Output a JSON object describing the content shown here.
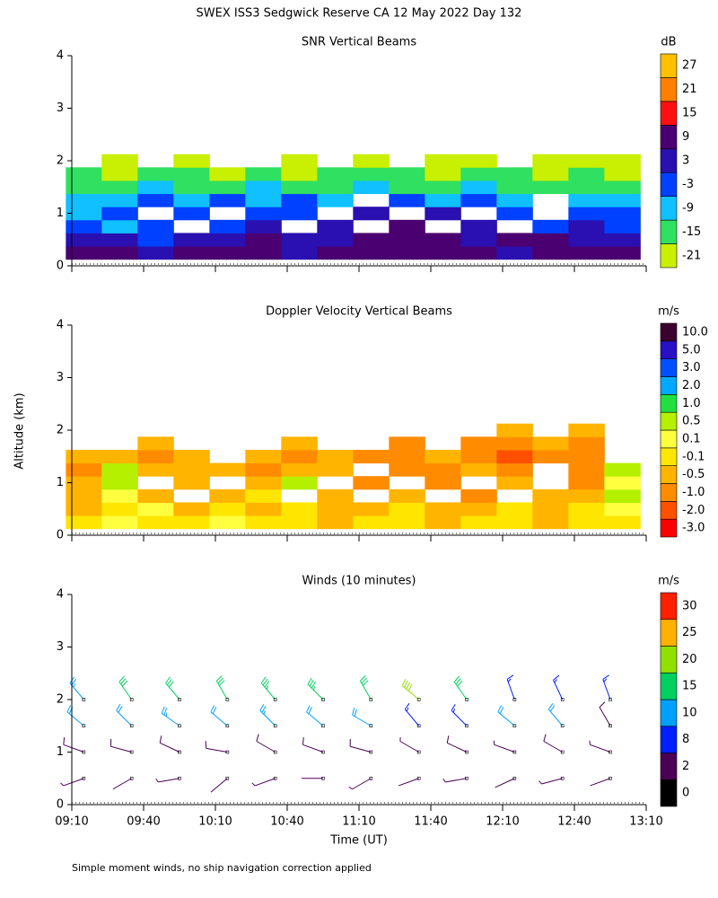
{
  "title": "SWEX ISS3 Sedgwick Reserve CA  12 May 2022 Day 132",
  "y_label": "Altitude (km)",
  "x_label": "Time (UT)",
  "note": "Simple moment winds, no ship navigation correction applied",
  "chart_data": [
    {
      "type": "heatmap",
      "title": "SNR Vertical Beams",
      "xlim": [
        550,
        790
      ],
      "ylim": [
        0,
        4
      ],
      "yticks": [
        0,
        1,
        2,
        3,
        4
      ],
      "xticks": [
        550,
        580,
        610,
        640,
        670,
        700,
        730,
        760,
        790
      ],
      "x": [
        555,
        570,
        585,
        600,
        615,
        630,
        645,
        660,
        675,
        690,
        705,
        720,
        735,
        750,
        765,
        780
      ],
      "y": [
        0.25,
        0.5,
        0.75,
        1.0,
        1.25,
        1.5,
        1.75,
        2.0
      ],
      "z": [
        [
          9,
          9,
          3,
          9,
          9,
          9,
          3,
          9,
          9,
          9,
          9,
          9,
          3,
          9,
          9,
          9
        ],
        [
          3,
          3,
          -3,
          3,
          3,
          9,
          3,
          3,
          9,
          9,
          9,
          3,
          9,
          9,
          3,
          3
        ],
        [
          -3,
          -9,
          -3,
          null,
          -3,
          3,
          null,
          3,
          null,
          9,
          null,
          3,
          null,
          -3,
          3,
          -3
        ],
        [
          -9,
          -3,
          null,
          -3,
          null,
          -3,
          -3,
          null,
          3,
          null,
          3,
          null,
          -3,
          null,
          -3,
          -3
        ],
        [
          -9,
          -9,
          -3,
          -9,
          -3,
          -9,
          -3,
          -9,
          null,
          -3,
          -9,
          -3,
          -9,
          null,
          -9,
          -9
        ],
        [
          -15,
          -15,
          -9,
          -15,
          -15,
          -9,
          -15,
          -15,
          -9,
          -15,
          -15,
          -9,
          -15,
          -15,
          -15,
          -15
        ],
        [
          -15,
          -21,
          -15,
          -15,
          -21,
          -15,
          -21,
          -15,
          -15,
          -15,
          -21,
          -15,
          -15,
          -21,
          -15,
          -21
        ],
        [
          null,
          -21,
          null,
          -21,
          null,
          null,
          -21,
          null,
          -21,
          null,
          -21,
          -21,
          null,
          -21,
          -21,
          -21
        ]
      ],
      "colorbar": {
        "label": "dB",
        "ticks": [
          -21,
          -15,
          -9,
          -3,
          3,
          9,
          15,
          21,
          27
        ],
        "colors": [
          "#c8f000",
          "#30e060",
          "#10c0ff",
          "#0040ff",
          "#2a10b0",
          "#4a0070",
          "#ff1010",
          "#ff8000",
          "#ffc000"
        ]
      }
    },
    {
      "type": "heatmap",
      "title": "Doppler Velocity Vertical Beams",
      "xlim": [
        550,
        790
      ],
      "ylim": [
        0,
        4
      ],
      "yticks": [
        0,
        1,
        2,
        3,
        4
      ],
      "xticks": [
        550,
        580,
        610,
        640,
        670,
        700,
        730,
        760,
        790
      ],
      "x": [
        555,
        570,
        585,
        600,
        615,
        630,
        645,
        660,
        675,
        690,
        705,
        720,
        735,
        750,
        765,
        780
      ],
      "y": [
        0.25,
        0.5,
        0.75,
        1.0,
        1.25,
        1.5,
        1.75,
        2.0
      ],
      "z": [
        [
          -0.1,
          0.1,
          -0.1,
          -0.1,
          0.1,
          -0.1,
          -0.1,
          -0.5,
          -0.1,
          -0.1,
          -0.5,
          -0.1,
          -0.1,
          -0.5,
          -0.1,
          -0.1
        ],
        [
          -0.5,
          -0.1,
          0.1,
          -0.5,
          -0.1,
          -0.5,
          -0.1,
          -0.5,
          -0.5,
          -0.1,
          -0.5,
          -0.5,
          -0.1,
          -0.5,
          -0.1,
          0.1
        ],
        [
          -0.5,
          0.1,
          -0.5,
          null,
          -0.5,
          -0.1,
          null,
          -0.5,
          null,
          -0.5,
          null,
          -1.0,
          null,
          -0.5,
          -0.5,
          0.5
        ],
        [
          -0.5,
          0.5,
          null,
          -0.5,
          null,
          -0.5,
          0.5,
          null,
          -1.0,
          null,
          -1.0,
          null,
          -0.5,
          null,
          -1.0,
          0.1
        ],
        [
          -1.0,
          0.5,
          -0.5,
          -0.5,
          -0.5,
          -1.0,
          -0.5,
          -0.5,
          null,
          -1.0,
          -1.0,
          -0.5,
          -1.0,
          null,
          -1.0,
          0.5
        ],
        [
          -0.5,
          -0.5,
          -1.0,
          -0.5,
          null,
          -0.5,
          -1.0,
          -0.5,
          -1.0,
          -1.0,
          -0.5,
          -1.0,
          -2.0,
          -1.0,
          -1.0,
          null
        ],
        [
          null,
          null,
          -0.5,
          null,
          null,
          null,
          -0.5,
          null,
          null,
          -1.0,
          null,
          -1.0,
          -1.0,
          -0.5,
          -1.0,
          null
        ],
        [
          null,
          null,
          null,
          null,
          null,
          null,
          null,
          null,
          null,
          null,
          null,
          null,
          -0.5,
          null,
          -0.5,
          null
        ]
      ],
      "colorbar": {
        "label": "m/s",
        "ticks": [
          {
            "value": -3,
            "label": "-3.0"
          },
          {
            "value": -2,
            "label": "-2.0"
          },
          {
            "value": -1,
            "label": "-1.0"
          },
          -0.5,
          -0.1,
          0.1,
          0.5,
          {
            "value": 1,
            "label": "1.0"
          },
          {
            "value": 2,
            "label": "2.0"
          },
          {
            "value": 3,
            "label": "3.0"
          },
          {
            "value": 5,
            "label": "5.0"
          },
          {
            "value": 10,
            "label": "10.0"
          }
        ],
        "colors": [
          "#ff0000",
          "#ff5000",
          "#ff8c00",
          "#ffb400",
          "#ffe600",
          "#ffff40",
          "#b4f000",
          "#20e040",
          "#00a8ff",
          "#0050ff",
          "#2810c8",
          "#3c0030"
        ]
      }
    },
    {
      "type": "barbs",
      "title": "Winds (10 minutes)",
      "xlim": [
        550,
        790
      ],
      "ylim": [
        0,
        4
      ],
      "yticks": [
        0,
        1,
        2,
        3,
        4
      ],
      "xticks": [
        {
          "value": 550,
          "label": "09:10"
        },
        {
          "value": 580,
          "label": "09:40"
        },
        {
          "value": 610,
          "label": "10:10"
        },
        {
          "value": 640,
          "label": "10:40"
        },
        {
          "value": 670,
          "label": "11:10"
        },
        {
          "value": 700,
          "label": "11:40"
        },
        {
          "value": 730,
          "label": "12:10"
        },
        {
          "value": 760,
          "label": "12:40"
        },
        {
          "value": 790,
          "label": "13:10"
        }
      ],
      "x": [
        555,
        555,
        555,
        555,
        575,
        575,
        575,
        575,
        595,
        595,
        595,
        595,
        615,
        615,
        615,
        615,
        635,
        635,
        635,
        635,
        655,
        655,
        655,
        655,
        675,
        675,
        675,
        675,
        695,
        695,
        695,
        695,
        715,
        715,
        715,
        715,
        735,
        735,
        735,
        735,
        755,
        755,
        755,
        755,
        775,
        775,
        775,
        775
      ],
      "y": [
        0.5,
        1.0,
        1.5,
        2.0,
        0.5,
        1.0,
        1.5,
        2.0,
        0.5,
        1.0,
        1.5,
        2.0,
        0.5,
        1.0,
        1.5,
        2.0,
        0.5,
        1.0,
        1.5,
        2.0,
        0.5,
        1.0,
        1.5,
        2.0,
        0.5,
        1.0,
        1.5,
        2.0,
        0.5,
        1.0,
        1.5,
        2.0,
        0.5,
        1.0,
        1.5,
        2.0,
        0.5,
        1.0,
        1.5,
        2.0,
        0.5,
        1.0,
        1.5,
        2.0,
        0.5,
        1.0,
        1.5,
        2.0
      ],
      "speed": [
        3,
        6,
        12,
        14,
        2,
        5,
        12,
        15,
        3,
        7,
        13,
        16,
        2,
        5,
        12,
        15,
        3,
        6,
        14,
        18,
        2,
        5,
        12,
        18,
        3,
        6,
        10,
        15,
        2,
        4,
        9,
        20,
        3,
        5,
        9,
        15,
        2,
        4,
        10,
        8,
        3,
        6,
        12,
        8,
        2,
        4,
        5,
        8
      ],
      "direction": [
        250,
        290,
        310,
        320,
        240,
        285,
        315,
        325,
        260,
        295,
        305,
        320,
        230,
        280,
        310,
        330,
        250,
        300,
        315,
        320,
        270,
        290,
        310,
        315,
        240,
        285,
        300,
        330,
        250,
        300,
        320,
        310,
        260,
        295,
        315,
        325,
        245,
        290,
        310,
        340,
        255,
        300,
        320,
        335,
        250,
        290,
        330,
        340
      ],
      "colorbar": {
        "label": "m/s",
        "ticks": [
          0,
          2,
          8,
          10,
          15,
          20,
          25,
          30
        ],
        "colors": [
          "#000000",
          "#4b0055",
          "#0020ff",
          "#00a0ff",
          "#00d060",
          "#90e000",
          "#ffb000",
          "#ff2000"
        ]
      }
    }
  ]
}
